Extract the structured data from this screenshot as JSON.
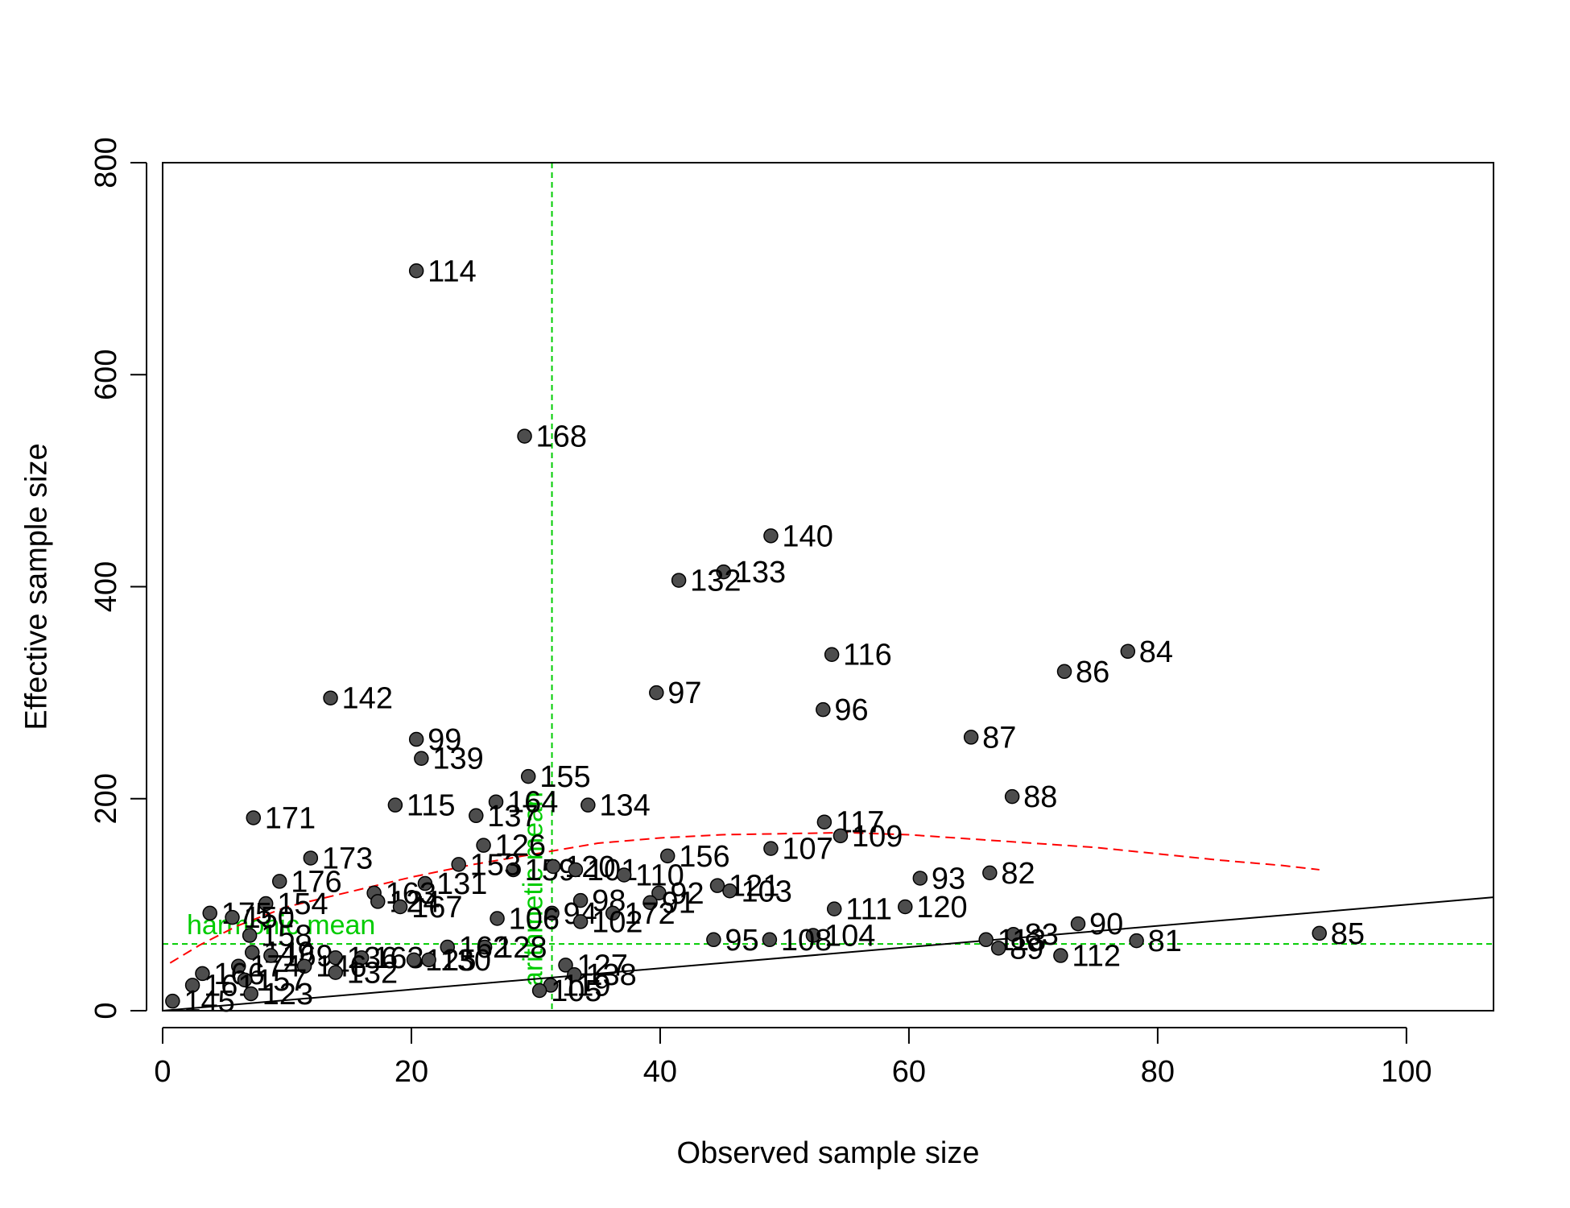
{
  "colors": {
    "point_fill": "#4d4d4d",
    "point_stroke": "#000000",
    "reference_line": "#00cc00",
    "smoother": "#ff0000",
    "identity_line": "#000000"
  },
  "chart_data": {
    "type": "scatter",
    "title": "",
    "xlabel": "Observed sample size",
    "ylabel": "Effective sample size",
    "xlim": [
      0,
      107
    ],
    "ylim": [
      0,
      800
    ],
    "x_ticks": [
      "0",
      "20",
      "40",
      "60",
      "80",
      "100"
    ],
    "y_ticks": [
      "0",
      "200",
      "400",
      "600",
      "800"
    ],
    "grid": false,
    "legend": "none",
    "points": [
      {
        "label": "114",
        "x": 20.4,
        "y": 698
      },
      {
        "label": "168",
        "x": 29.1,
        "y": 542
      },
      {
        "label": "140",
        "x": 48.9,
        "y": 448
      },
      {
        "label": "133",
        "x": 45.1,
        "y": 414
      },
      {
        "label": "132",
        "x": 41.5,
        "y": 406
      },
      {
        "label": "116",
        "x": 53.8,
        "y": 336
      },
      {
        "label": "84",
        "x": 77.6,
        "y": 339
      },
      {
        "label": "86",
        "x": 72.5,
        "y": 320
      },
      {
        "label": "97",
        "x": 39.7,
        "y": 300
      },
      {
        "label": "142",
        "x": 13.5,
        "y": 295
      },
      {
        "label": "96",
        "x": 53.1,
        "y": 284
      },
      {
        "label": "87",
        "x": 65.0,
        "y": 258
      },
      {
        "label": "99",
        "x": 20.4,
        "y": 256
      },
      {
        "label": "139",
        "x": 20.8,
        "y": 238
      },
      {
        "label": "155",
        "x": 29.4,
        "y": 221
      },
      {
        "label": "88",
        "x": 68.3,
        "y": 202
      },
      {
        "label": "164",
        "x": 26.8,
        "y": 197
      },
      {
        "label": "115",
        "x": 18.7,
        "y": 194
      },
      {
        "label": "134",
        "x": 34.2,
        "y": 194
      },
      {
        "label": "171",
        "x": 7.3,
        "y": 182
      },
      {
        "label": "137",
        "x": 25.2,
        "y": 184
      },
      {
        "label": "117",
        "x": 53.2,
        "y": 178
      },
      {
        "label": "109",
        "x": 54.5,
        "y": 165
      },
      {
        "label": "126",
        "x": 25.8,
        "y": 156
      },
      {
        "label": "107",
        "x": 48.9,
        "y": 153
      },
      {
        "label": "156",
        "x": 40.6,
        "y": 146
      },
      {
        "label": "173",
        "x": 11.9,
        "y": 144
      },
      {
        "label": "159",
        "x": 28.2,
        "y": 133
      },
      {
        "label": "120",
        "x": 31.4,
        "y": 136
      },
      {
        "label": "101",
        "x": 33.2,
        "y": 133
      },
      {
        "label": "82",
        "x": 66.5,
        "y": 130
      },
      {
        "label": "110",
        "x": 37.1,
        "y": 128
      },
      {
        "label": "153",
        "x": 23.8,
        "y": 138
      },
      {
        "label": "93",
        "x": 60.9,
        "y": 125
      },
      {
        "label": "176",
        "x": 9.4,
        "y": 122
      },
      {
        "label": "131",
        "x": 21.1,
        "y": 120
      },
      {
        "label": "121",
        "x": 44.6,
        "y": 118
      },
      {
        "label": "103",
        "x": 45.6,
        "y": 113
      },
      {
        "label": "163",
        "x": 17.0,
        "y": 111
      },
      {
        "label": "124",
        "x": 17.3,
        "y": 103
      },
      {
        "label": "92",
        "x": 39.9,
        "y": 111
      },
      {
        "label": "91",
        "x": 39.2,
        "y": 102
      },
      {
        "label": "154",
        "x": 8.3,
        "y": 101
      },
      {
        "label": "98",
        "x": 33.6,
        "y": 104
      },
      {
        "label": "167",
        "x": 19.1,
        "y": 98
      },
      {
        "label": "111",
        "x": 54.0,
        "y": 96
      },
      {
        "label": "120",
        "x": 59.7,
        "y": 98
      },
      {
        "label": "172",
        "x": 36.2,
        "y": 92
      },
      {
        "label": "94",
        "x": 31.3,
        "y": 92
      },
      {
        "label": "175",
        "x": 3.8,
        "y": 92
      },
      {
        "label": "150",
        "x": 5.6,
        "y": 88
      },
      {
        "label": "106",
        "x": 26.9,
        "y": 87
      },
      {
        "label": "102",
        "x": 33.6,
        "y": 84
      },
      {
        "label": "90",
        "x": 73.6,
        "y": 82
      },
      {
        "label": "85",
        "x": 93.0,
        "y": 73
      },
      {
        "label": "83",
        "x": 68.4,
        "y": 72
      },
      {
        "label": "104",
        "x": 52.3,
        "y": 71
      },
      {
        "label": "158",
        "x": 7.0,
        "y": 71
      },
      {
        "label": "95",
        "x": 44.3,
        "y": 67
      },
      {
        "label": "108",
        "x": 48.8,
        "y": 67
      },
      {
        "label": "81",
        "x": 78.3,
        "y": 66
      },
      {
        "label": "113",
        "x": 66.2,
        "y": 67
      },
      {
        "label": "89",
        "x": 67.2,
        "y": 59
      },
      {
        "label": "128",
        "x": 25.9,
        "y": 60
      },
      {
        "label": "162",
        "x": 22.9,
        "y": 60
      },
      {
        "label": "112",
        "x": 72.2,
        "y": 52
      },
      {
        "label": "149",
        "x": 7.2,
        "y": 55
      },
      {
        "label": "169",
        "x": 8.7,
        "y": 52
      },
      {
        "label": "136",
        "x": 13.9,
        "y": 50
      },
      {
        "label": "163",
        "x": 16.0,
        "y": 50
      },
      {
        "label": "125",
        "x": 20.2,
        "y": 48
      },
      {
        "label": "130",
        "x": 21.4,
        "y": 48
      },
      {
        "label": "127",
        "x": 32.4,
        "y": 43
      },
      {
        "label": "174",
        "x": 6.1,
        "y": 42
      },
      {
        "label": "146",
        "x": 11.4,
        "y": 42
      },
      {
        "label": "132",
        "x": 13.9,
        "y": 36
      },
      {
        "label": "166",
        "x": 3.2,
        "y": 35
      },
      {
        "label": "138",
        "x": 33.1,
        "y": 34
      },
      {
        "label": "157",
        "x": 6.6,
        "y": 29
      },
      {
        "label": "161",
        "x": 2.4,
        "y": 24
      },
      {
        "label": "119",
        "x": 31.2,
        "y": 24
      },
      {
        "label": "105",
        "x": 30.3,
        "y": 19
      },
      {
        "label": "123",
        "x": 7.1,
        "y": 16
      },
      {
        "label": "145",
        "x": 0.8,
        "y": 9
      }
    ],
    "series": [
      {
        "kind": "smoother",
        "x": [
          0.6,
          3,
          6,
          10,
          15,
          20,
          25,
          30,
          35,
          40,
          45,
          50,
          55,
          60,
          65,
          70,
          75,
          80,
          85,
          90,
          93
        ],
        "y": [
          45,
          62,
          80,
          98,
          112,
          126,
          138,
          148,
          158,
          163,
          166,
          167,
          168,
          166,
          162,
          158,
          154,
          148,
          142,
          137,
          133
        ]
      },
      {
        "kind": "identity",
        "x": [
          0,
          107
        ],
        "y": [
          0,
          107
        ]
      }
    ],
    "reference_lines": [
      {
        "label": "arithmetic mean",
        "orientation": "vertical",
        "value": 31.3
      },
      {
        "label": "harmonic mean",
        "orientation": "horizontal",
        "value": 63
      }
    ]
  }
}
